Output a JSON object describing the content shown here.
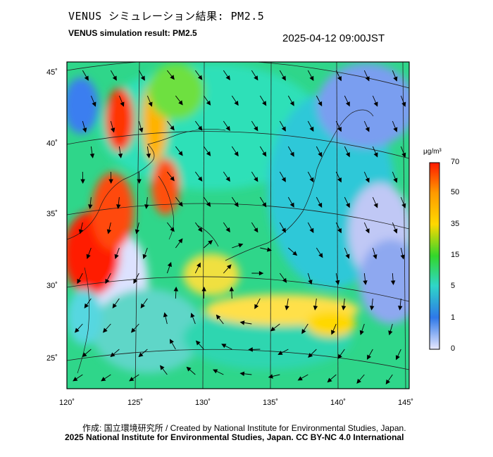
{
  "header": {
    "title_jp": "VENUS シミュレーション結果: PM2.5",
    "title_en": "VENUS simulation result: PM2.5",
    "timestamp": "2025-04-12 09:00JST"
  },
  "map": {
    "lat_labels": [
      "45˚",
      "40˚",
      "35˚",
      "30˚",
      "25˚"
    ],
    "lon_labels": [
      "120˚",
      "125˚",
      "130˚",
      "135˚",
      "140˚",
      "145˚"
    ]
  },
  "colorbar": {
    "unit": "μg/m³",
    "levels": [
      "70",
      "50",
      "35",
      "15",
      "5",
      "1",
      "0"
    ],
    "colors": [
      "#ff1a00",
      "#ff9900",
      "#ffd800",
      "#33d62b",
      "#2fd6c8",
      "#2e78e8",
      "#e8e8ff"
    ]
  },
  "footer": {
    "credit": "作成: 国立環境研究所 / Created by National Institute for Environmental Studies, Japan.",
    "license": "2025 National Institute for Environmental Studies, Japan. CC BY-NC 4.0 International"
  }
}
